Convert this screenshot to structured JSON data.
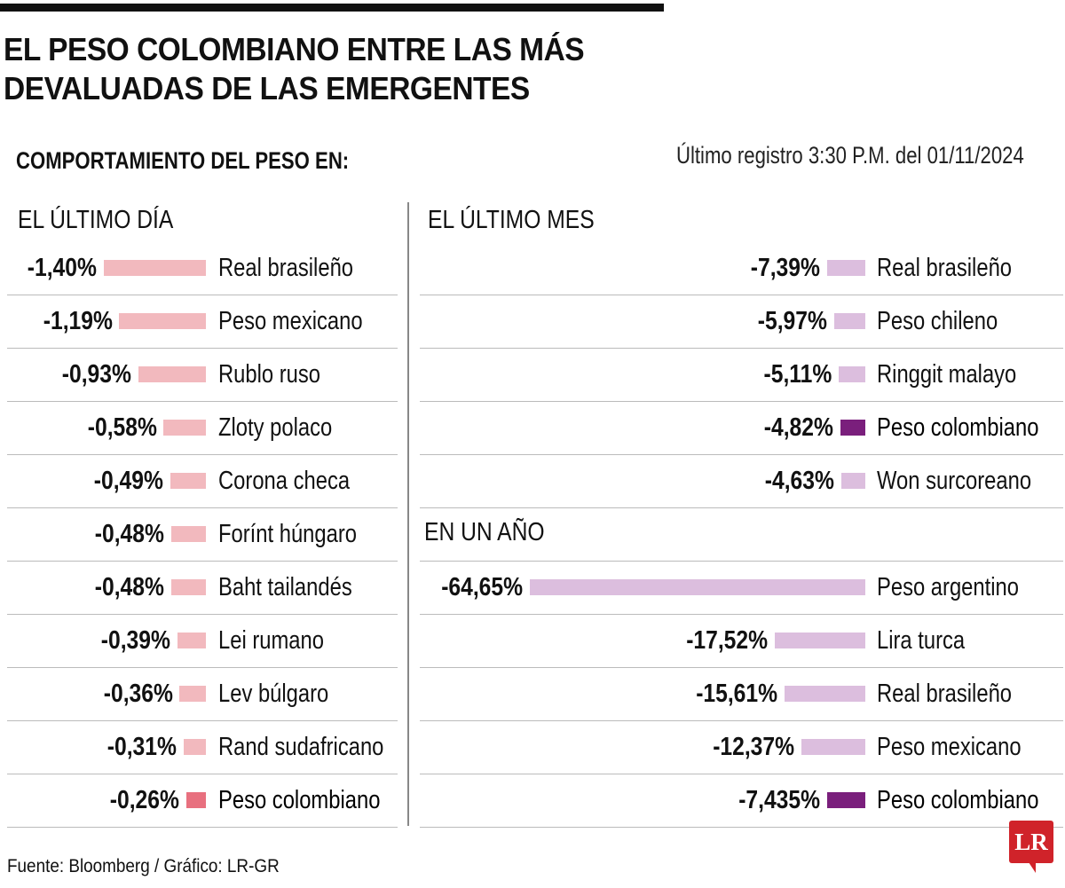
{
  "title_line1": "EL PESO COLOMBIANO ENTRE LAS MÁS",
  "title_line2": "DEVALUADAS DE LAS EMERGENTES",
  "subtitle": "COMPORTAMIENTO DEL PESO EN:",
  "last_update": "Último registro 3:30 P.M. del 01/11/2024",
  "footer": "Fuente: Bloomberg / Gráfico: LR-GR",
  "logo_text": "LR",
  "colors": {
    "day_bar": "#f2b9be",
    "day_highlight": "#e8707f",
    "month_bar": "#dcbede",
    "month_highlight": "#7a1f7c"
  },
  "chart_data": [
    {
      "type": "bar",
      "title": "EL ÚLTIMO DÍA",
      "orientation": "horizontal",
      "highlight": "Peso colombiano",
      "categories": [
        "Real brasileño",
        "Peso mexicano",
        "Rublo ruso",
        "Zloty polaco",
        "Corona checa",
        "Forínt húngaro",
        "Baht tailandés",
        "Lei rumano",
        "Lev búlgaro",
        "Rand sudafricano",
        "Peso colombiano"
      ],
      "values": [
        -1.4,
        -1.19,
        -0.93,
        -0.58,
        -0.49,
        -0.48,
        -0.48,
        -0.39,
        -0.36,
        -0.31,
        -0.26
      ],
      "labels": [
        "-1,40%",
        "-1,19%",
        "-0,93%",
        "-0,58%",
        "-0,49%",
        "-0,48%",
        "-0,48%",
        "-0,39%",
        "-0,36%",
        "-0,31%",
        "-0,26%"
      ]
    },
    {
      "type": "bar",
      "title": "EL ÚLTIMO MES",
      "orientation": "horizontal",
      "highlight": "Peso colombiano",
      "categories": [
        "Real brasileño",
        "Peso chileno",
        "Ringgit malayo",
        "Peso colombiano",
        "Won surcoreano"
      ],
      "values": [
        -7.39,
        -5.97,
        -5.11,
        -4.82,
        -4.63
      ],
      "labels": [
        "-7,39%",
        "-5,97%",
        "-5,11%",
        "-4,82%",
        "-4,63%"
      ]
    },
    {
      "type": "bar",
      "title": "EN UN AÑO",
      "orientation": "horizontal",
      "highlight": "Peso colombiano",
      "categories": [
        "Peso argentino",
        "Lira turca",
        "Real brasileño",
        "Peso mexicano",
        "Peso colombiano"
      ],
      "values": [
        -64.65,
        -17.52,
        -15.61,
        -12.37,
        -7.435
      ],
      "labels": [
        "-64,65%",
        "-17,52%",
        "-15,61%",
        "-12,37%",
        "-7,435%"
      ]
    }
  ]
}
